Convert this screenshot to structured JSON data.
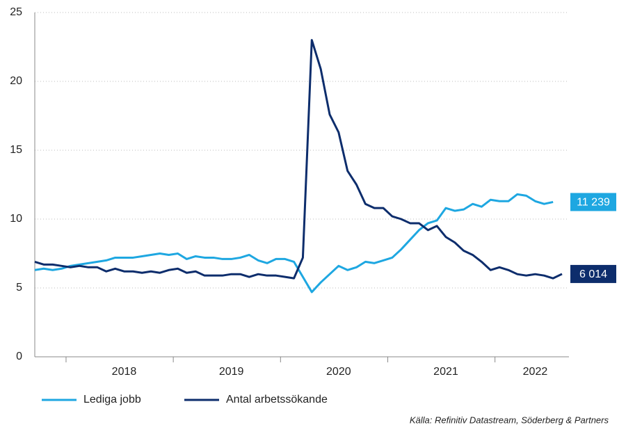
{
  "chart_data": {
    "type": "line",
    "categories": [
      null,
      null,
      null,
      null,
      null,
      null,
      null,
      null,
      null,
      null,
      "2018",
      null,
      null,
      null,
      null,
      null,
      null,
      null,
      null,
      null,
      null,
      null,
      "2019",
      null,
      null,
      null,
      null,
      null,
      null,
      null,
      null,
      null,
      null,
      null,
      "2020",
      null,
      null,
      null,
      null,
      null,
      null,
      null,
      null,
      null,
      null,
      null,
      "2021",
      null,
      null,
      null,
      null,
      null,
      null,
      null,
      null,
      null,
      "2022",
      null,
      null,
      null
    ],
    "series": [
      {
        "name": "Lediga jobb",
        "color": "#1ea7e1",
        "values": [
          6.3,
          6.4,
          6.3,
          6.4,
          6.6,
          6.7,
          6.8,
          6.9,
          7.0,
          7.2,
          7.2,
          7.2,
          7.3,
          7.4,
          7.5,
          7.4,
          7.5,
          7.1,
          7.3,
          7.2,
          7.2,
          7.1,
          7.1,
          7.2,
          7.4,
          7.0,
          6.8,
          7.1,
          7.1,
          6.9,
          5.8,
          4.7,
          5.4,
          6.0,
          6.6,
          6.3,
          6.5,
          6.9,
          6.8,
          7.0,
          7.2,
          7.8,
          8.5,
          9.2,
          9.7,
          9.9,
          10.8,
          10.6,
          10.7,
          11.1,
          10.9,
          11.4,
          11.3,
          11.3,
          11.8,
          11.7,
          11.3,
          11.1,
          11.239,
          null
        ],
        "value_labels": [
          null,
          null,
          null,
          null,
          null,
          null,
          null,
          null,
          null,
          null,
          null,
          null,
          null,
          null,
          null,
          null,
          null,
          null,
          null,
          null,
          null,
          null,
          null,
          null,
          null,
          null,
          null,
          null,
          null,
          null,
          null,
          null,
          null,
          null,
          null,
          null,
          null,
          null,
          null,
          null,
          null,
          null,
          null,
          null,
          null,
          null,
          null,
          null,
          null,
          null,
          null,
          null,
          null,
          null,
          null,
          null,
          null,
          null,
          "11 239",
          null
        ]
      },
      {
        "name": "Antal arbetssökande",
        "color": "#0d2d6c",
        "values": [
          6.9,
          6.7,
          6.7,
          6.6,
          6.5,
          6.6,
          6.5,
          6.5,
          6.2,
          6.4,
          6.2,
          6.2,
          6.1,
          6.2,
          6.1,
          6.3,
          6.4,
          6.1,
          6.2,
          5.9,
          5.9,
          5.9,
          6.0,
          6.0,
          5.8,
          6.0,
          5.9,
          5.9,
          5.8,
          5.7,
          7.2,
          23.0,
          20.9,
          17.6,
          16.3,
          13.5,
          12.5,
          11.1,
          10.8,
          10.8,
          10.2,
          10.0,
          9.7,
          9.7,
          9.2,
          9.5,
          8.7,
          8.3,
          7.7,
          7.4,
          6.9,
          6.3,
          6.5,
          6.3,
          6.0,
          5.9,
          6.0,
          5.9,
          5.7,
          6.014
        ],
        "value_labels": [
          null,
          null,
          null,
          null,
          null,
          null,
          null,
          null,
          null,
          null,
          null,
          null,
          null,
          null,
          null,
          null,
          null,
          null,
          null,
          null,
          null,
          null,
          null,
          null,
          null,
          null,
          null,
          null,
          null,
          null,
          null,
          null,
          null,
          null,
          null,
          null,
          null,
          null,
          null,
          null,
          null,
          null,
          null,
          null,
          null,
          null,
          null,
          null,
          null,
          null,
          null,
          null,
          null,
          null,
          null,
          null,
          null,
          null,
          null,
          "6 014"
        ]
      }
    ],
    "ylim": [
      0,
      25
    ],
    "yticks": [
      0,
      5,
      10,
      15,
      20,
      25
    ],
    "grid": true,
    "source": "Källa: Refinitiv Datastream, Söderberg & Partners"
  }
}
